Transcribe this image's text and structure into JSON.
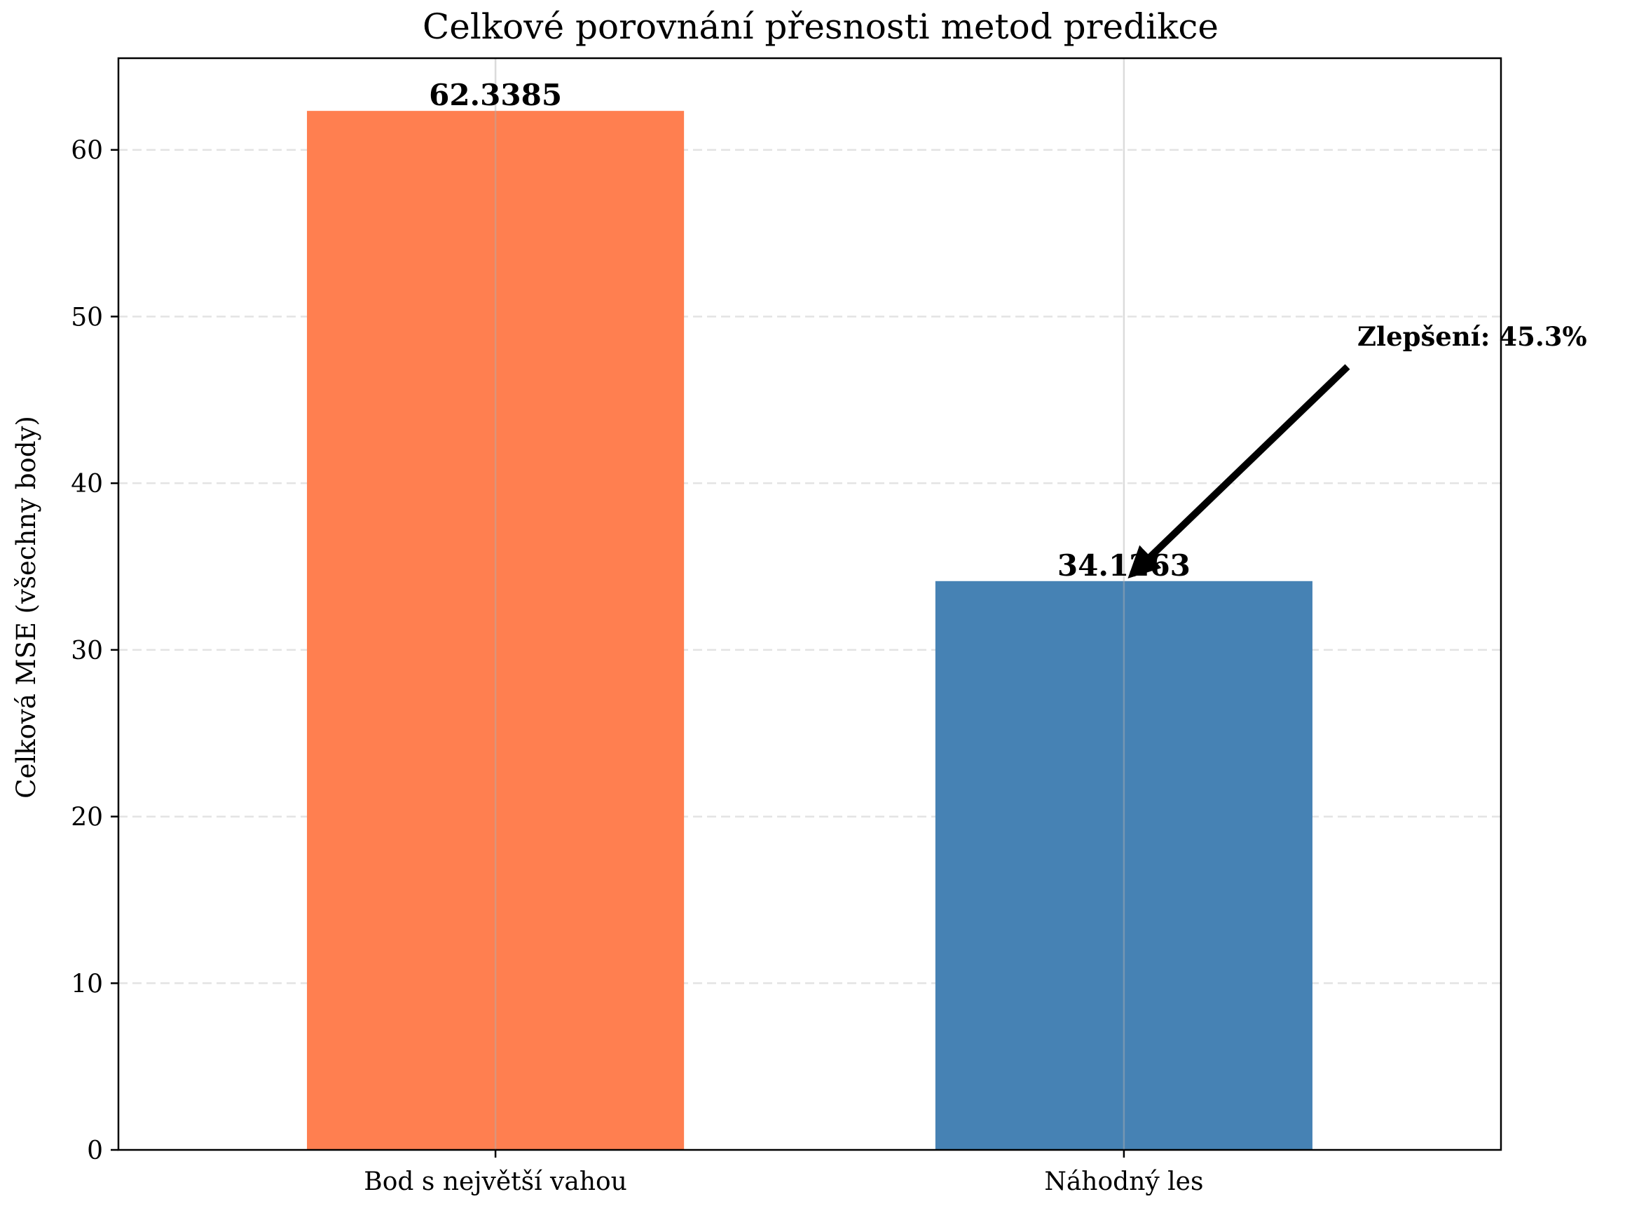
{
  "chart_data": {
    "type": "bar",
    "title": "Celkové porovnání přesnosti metod predikce",
    "xlabel": "",
    "ylabel": "Celková MSE (všechny body)",
    "categories": [
      "Bod s největší vahou",
      "Náhodný les"
    ],
    "values": [
      62.3385,
      34.1263
    ],
    "value_labels": [
      "62.3385",
      "34.1263"
    ],
    "bar_colors": [
      "#FF7F50",
      "#4682B4"
    ],
    "ylim": [
      0,
      65.5
    ],
    "yticks": [
      0,
      10,
      20,
      30,
      40,
      50,
      60
    ],
    "grid": true,
    "annotation": {
      "text": "Zlepšení: 45.3%",
      "target_category": "Náhodný les",
      "target_value": 34.1263
    }
  }
}
